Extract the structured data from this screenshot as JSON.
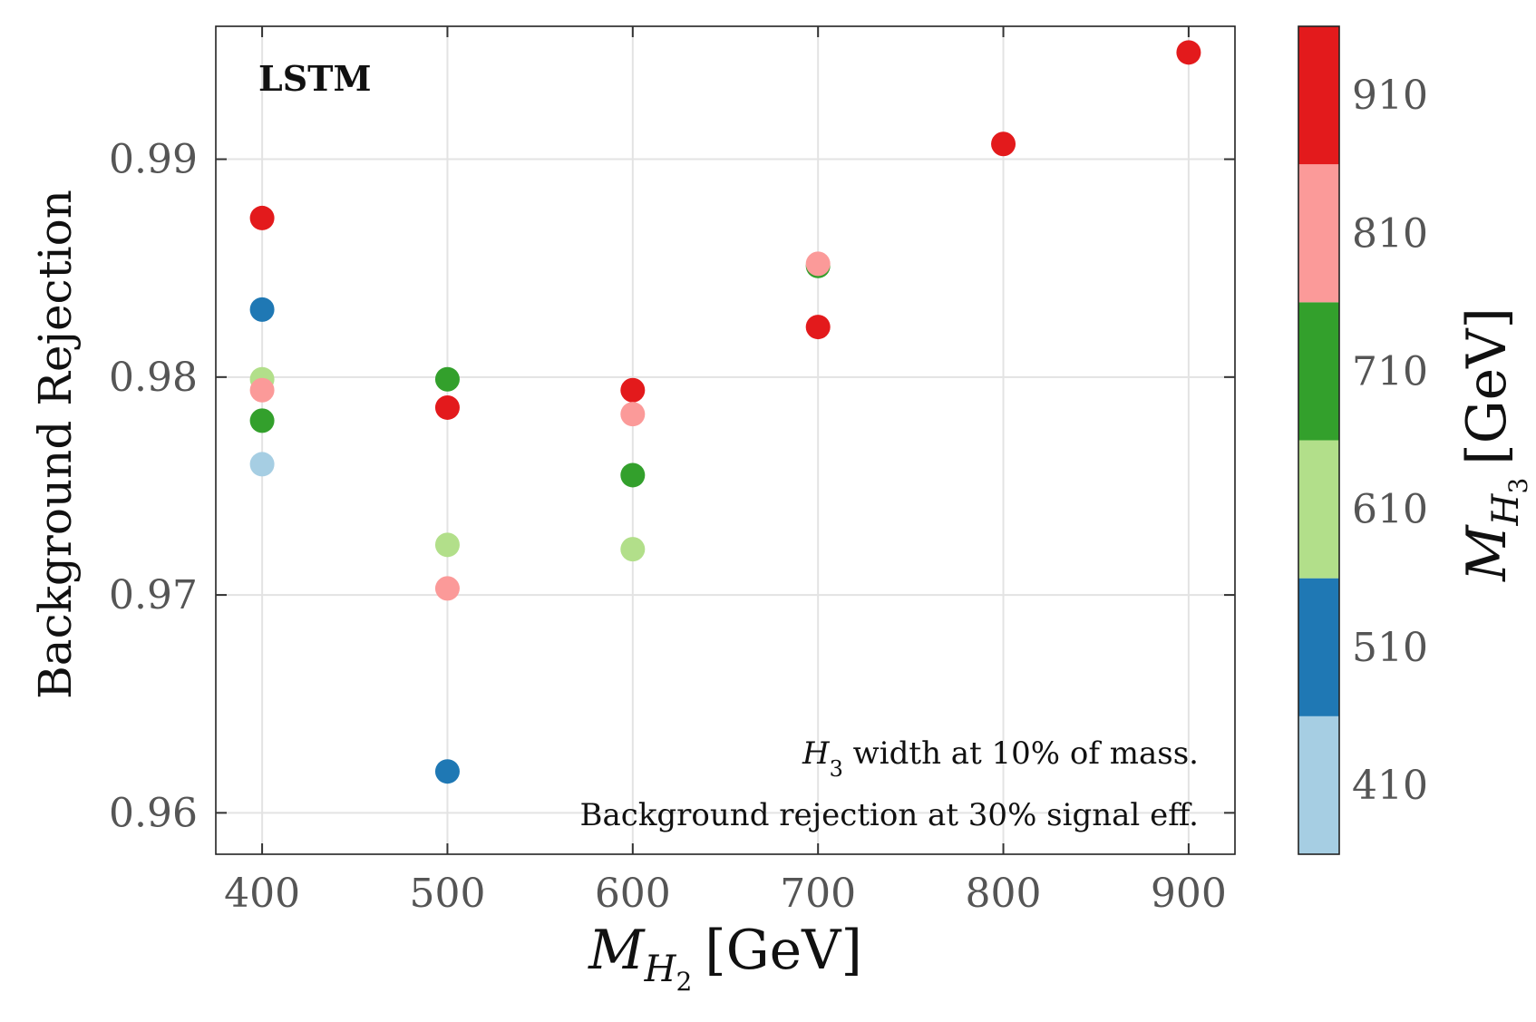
{
  "chart_data": {
    "type": "scatter",
    "ylabel": "Background Rejection",
    "xlabel": {
      "main": "M",
      "sub": "H",
      "subsub": "2",
      "unit": "[GeV]"
    },
    "colorbar_label": {
      "main": "M",
      "sub": "H",
      "subsub": "3",
      "unit": "[GeV]"
    },
    "model_label": "LSTM",
    "annotations": [
      {
        "prefix": "H",
        "sub": "3",
        "text": " width at 10% of mass."
      },
      {
        "prefix": "",
        "sub": "",
        "text": "Background rejection at 30% signal eff."
      }
    ],
    "xlim": [
      375,
      925
    ],
    "ylim": [
      0.9581,
      0.9961
    ],
    "x_ticks": [
      400,
      500,
      600,
      700,
      800,
      900
    ],
    "x_tick_labels": [
      "400",
      "500",
      "600",
      "700",
      "800",
      "900"
    ],
    "y_ticks": [
      0.96,
      0.97,
      0.98,
      0.99
    ],
    "y_tick_labels": [
      "0.96",
      "0.97",
      "0.98",
      "0.99"
    ],
    "colorbar": {
      "bins": [
        {
          "label": "410",
          "color": "#a6cee3"
        },
        {
          "label": "510",
          "color": "#1f78b4"
        },
        {
          "label": "610",
          "color": "#b2df8a"
        },
        {
          "label": "710",
          "color": "#33a02c"
        },
        {
          "label": "810",
          "color": "#fb9a99"
        },
        {
          "label": "910",
          "color": "#e31a1c"
        }
      ]
    },
    "points": [
      {
        "x": 400,
        "y": 0.9873,
        "mh3": 910
      },
      {
        "x": 400,
        "y": 0.9831,
        "mh3": 510
      },
      {
        "x": 400,
        "y": 0.9799,
        "mh3": 610
      },
      {
        "x": 400,
        "y": 0.9794,
        "mh3": 810
      },
      {
        "x": 400,
        "y": 0.978,
        "mh3": 710
      },
      {
        "x": 400,
        "y": 0.976,
        "mh3": 410
      },
      {
        "x": 500,
        "y": 0.9799,
        "mh3": 710
      },
      {
        "x": 500,
        "y": 0.9786,
        "mh3": 910
      },
      {
        "x": 500,
        "y": 0.9723,
        "mh3": 610
      },
      {
        "x": 500,
        "y": 0.9703,
        "mh3": 810
      },
      {
        "x": 500,
        "y": 0.9619,
        "mh3": 510
      },
      {
        "x": 600,
        "y": 0.9794,
        "mh3": 910
      },
      {
        "x": 600,
        "y": 0.9783,
        "mh3": 810
      },
      {
        "x": 600,
        "y": 0.9755,
        "mh3": 710
      },
      {
        "x": 600,
        "y": 0.9721,
        "mh3": 610
      },
      {
        "x": 700,
        "y": 0.9851,
        "mh3": 710
      },
      {
        "x": 700,
        "y": 0.9852,
        "mh3": 810
      },
      {
        "x": 700,
        "y": 0.9823,
        "mh3": 910
      },
      {
        "x": 800,
        "y": 0.9907,
        "mh3": 910
      },
      {
        "x": 900,
        "y": 0.9949,
        "mh3": 910
      }
    ]
  }
}
